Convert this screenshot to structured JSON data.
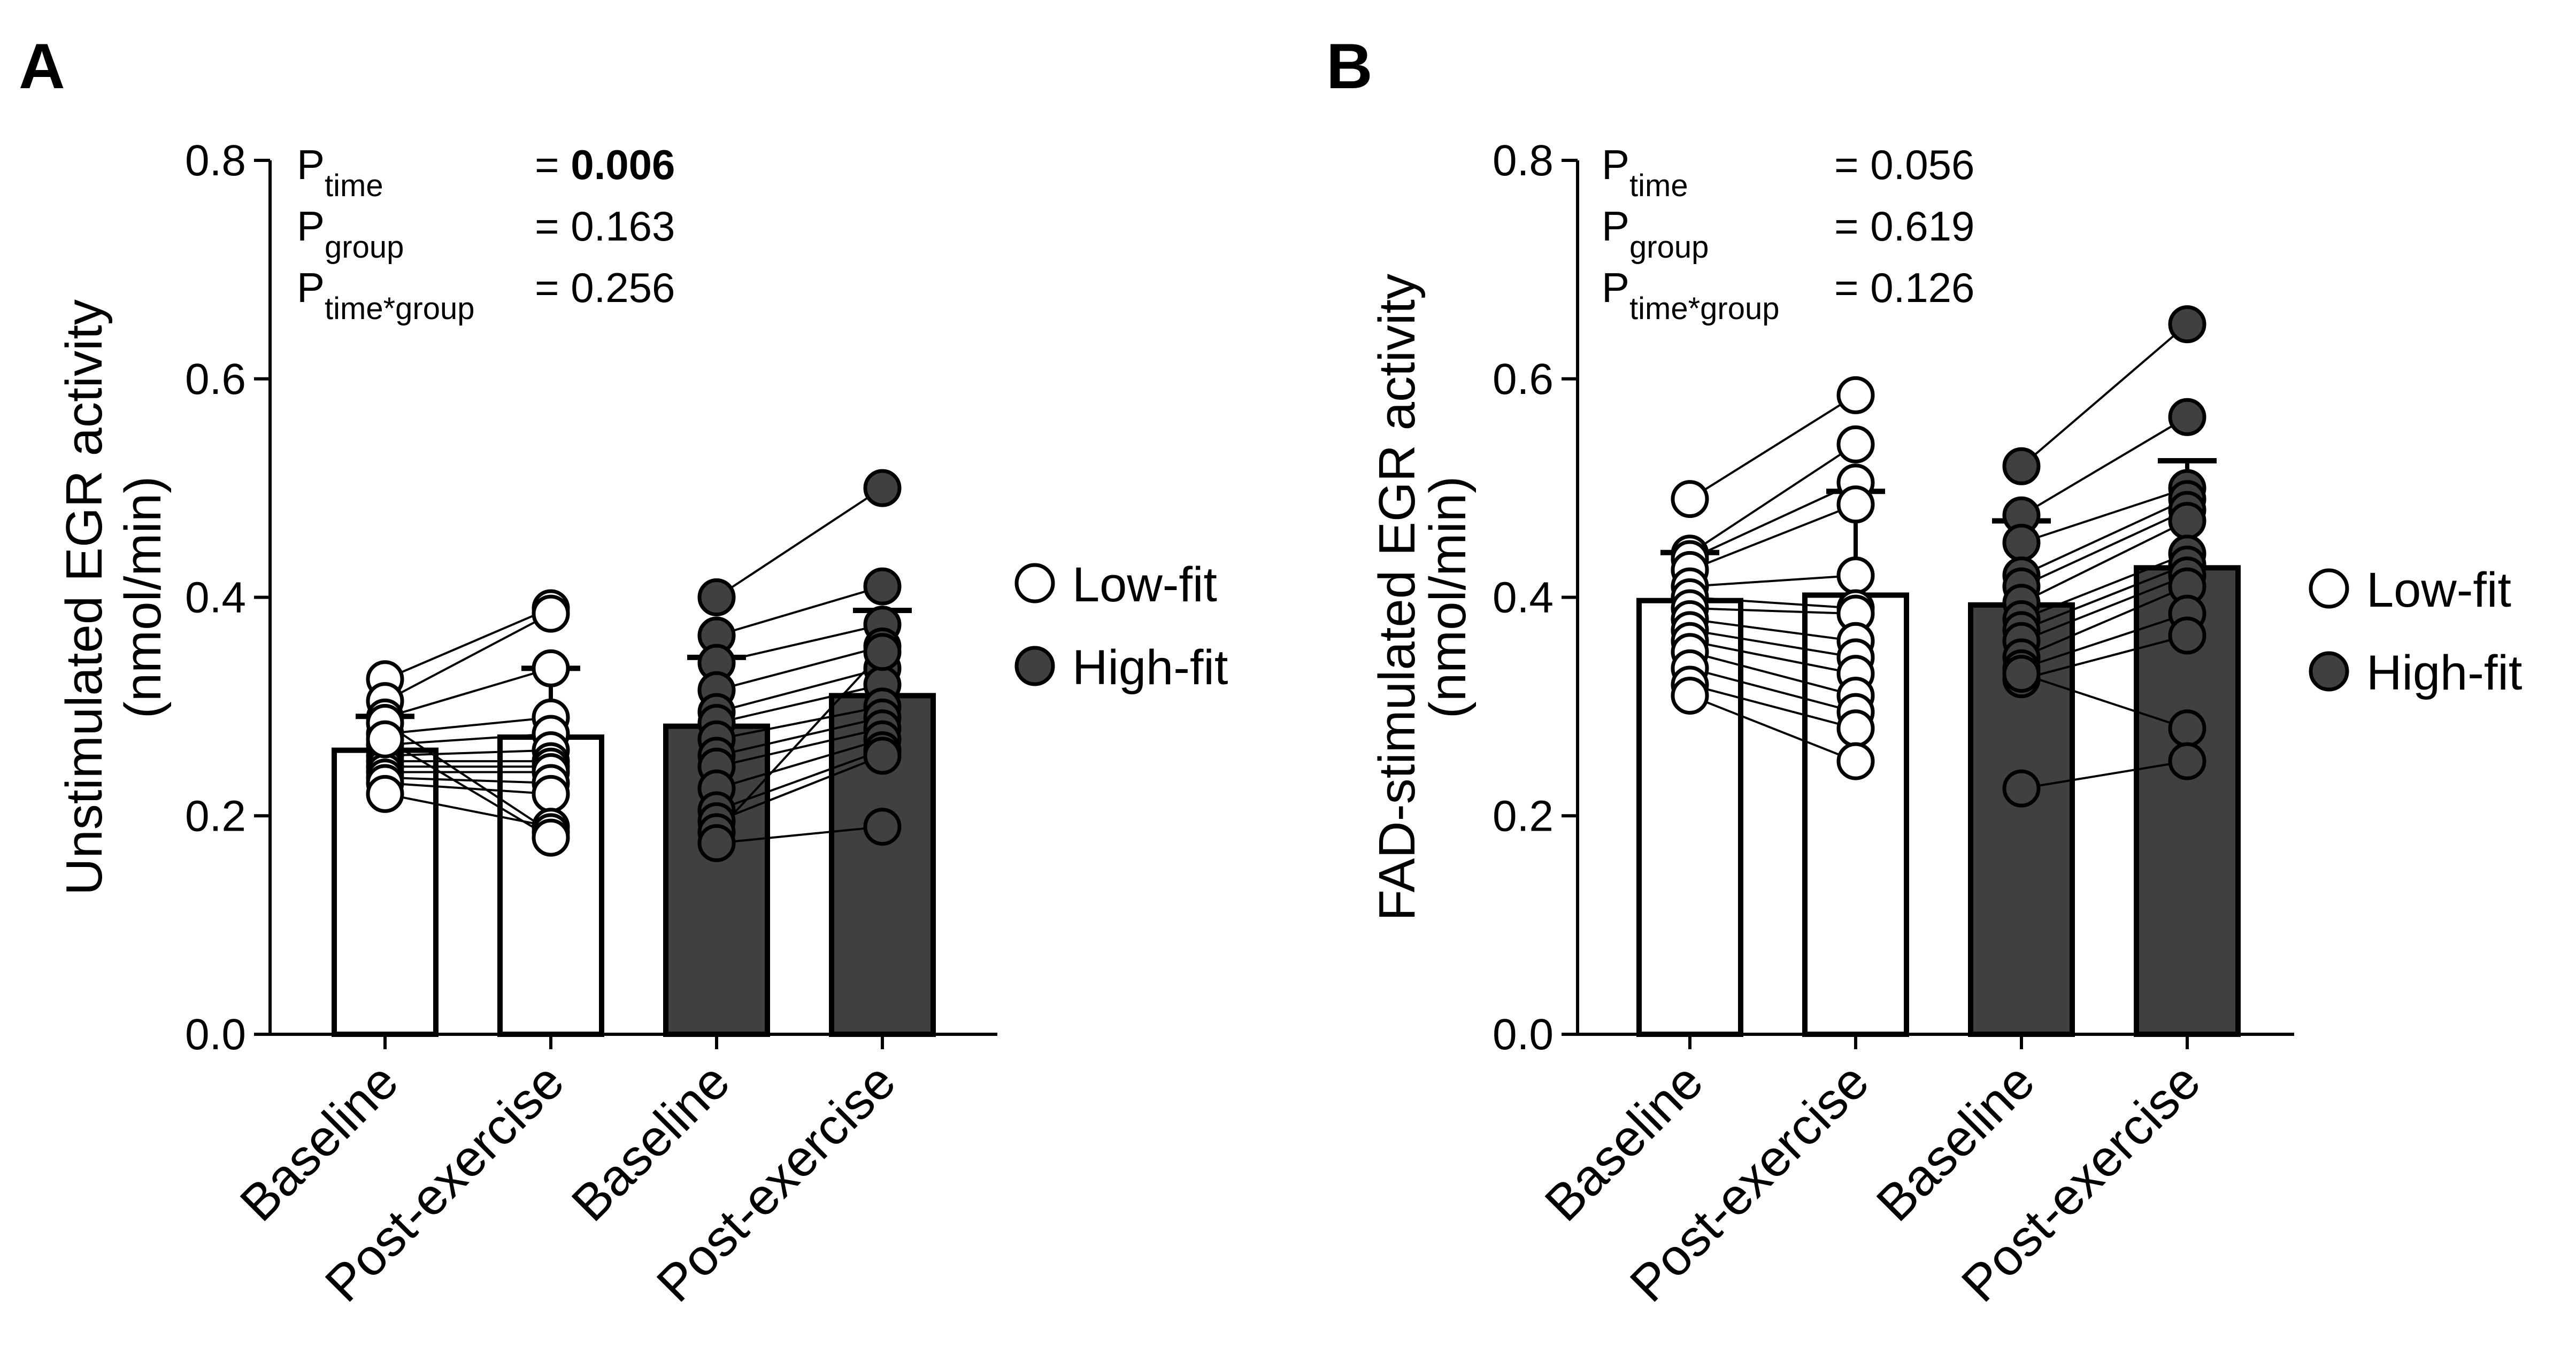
{
  "figure": {
    "legend": [
      {
        "label": "Low-fit",
        "fill": "#ffffff"
      },
      {
        "label": "High-fit",
        "fill": "#404040"
      }
    ]
  },
  "chart_data": [
    {
      "type": "bar",
      "panel_label": "A",
      "ylabel_line1": "Unstimulated EGR activity",
      "ylabel_line2": "(nmol/min)",
      "ylim": [
        0,
        0.8
      ],
      "yticks": [
        "0.0",
        "0.2",
        "0.4",
        "0.6",
        "0.8"
      ],
      "categories": [
        "Baseline",
        "Post-exercise",
        "Baseline",
        "Post-exercise"
      ],
      "groups": [
        "Low-fit",
        "Low-fit",
        "High-fit",
        "High-fit"
      ],
      "values": [
        0.26,
        0.272,
        0.282,
        0.31
      ],
      "error_upper": [
        0.291,
        0.335,
        0.345,
        0.388
      ],
      "stats": [
        {
          "p": "P",
          "sub": "time",
          "eq": "= ",
          "val": "0.006",
          "bold": true
        },
        {
          "p": "P",
          "sub": "group",
          "eq": "= ",
          "val": "0.163",
          "bold": false
        },
        {
          "p": "P",
          "sub": "time*group",
          "eq": "= ",
          "val": "0.256",
          "bold": false
        }
      ],
      "pairs": [
        {
          "group": "Low-fit",
          "baseline": [
            0.325,
            0.305,
            0.29,
            0.275,
            0.265,
            0.255,
            0.25,
            0.245,
            0.24,
            0.235,
            0.23,
            0.22,
            0.285,
            0.27
          ],
          "post": [
            0.39,
            0.385,
            0.335,
            0.29,
            0.275,
            0.26,
            0.25,
            0.245,
            0.24,
            0.23,
            0.22,
            0.19,
            0.185,
            0.18
          ]
        },
        {
          "group": "High-fit",
          "baseline": [
            0.4,
            0.365,
            0.34,
            0.315,
            0.295,
            0.285,
            0.27,
            0.255,
            0.245,
            0.225,
            0.205,
            0.195,
            0.185,
            0.175
          ],
          "post": [
            0.5,
            0.41,
            0.375,
            0.355,
            0.335,
            0.32,
            0.3,
            0.29,
            0.28,
            0.27,
            0.26,
            0.255,
            0.35,
            0.19
          ]
        }
      ]
    },
    {
      "type": "bar",
      "panel_label": "B",
      "ylabel_line1": "FAD-stimulated EGR activity",
      "ylabel_line2": "(nmol/min)",
      "ylim": [
        0,
        0.8
      ],
      "yticks": [
        "0.0",
        "0.2",
        "0.4",
        "0.6",
        "0.8"
      ],
      "categories": [
        "Baseline",
        "Post-exercise",
        "Baseline",
        "Post-exercise"
      ],
      "groups": [
        "Low-fit",
        "Low-fit",
        "High-fit",
        "High-fit"
      ],
      "values": [
        0.397,
        0.402,
        0.393,
        0.427
      ],
      "error_upper": [
        0.441,
        0.497,
        0.47,
        0.525
      ],
      "stats": [
        {
          "p": "P",
          "sub": "time",
          "eq": "= ",
          "val": "0.056",
          "bold": false
        },
        {
          "p": "P",
          "sub": "group",
          "eq": "= ",
          "val": "0.619",
          "bold": false
        },
        {
          "p": "P",
          "sub": "time*group",
          "eq": "= ",
          "val": "0.126",
          "bold": false
        }
      ],
      "pairs": [
        {
          "group": "Low-fit",
          "baseline": [
            0.49,
            0.44,
            0.435,
            0.425,
            0.41,
            0.4,
            0.39,
            0.38,
            0.37,
            0.36,
            0.35,
            0.335,
            0.32,
            0.31
          ],
          "post": [
            0.585,
            0.54,
            0.505,
            0.485,
            0.42,
            0.39,
            0.385,
            0.36,
            0.345,
            0.33,
            0.31,
            0.295,
            0.28,
            0.25
          ]
        },
        {
          "group": "High-fit",
          "baseline": [
            0.52,
            0.475,
            0.45,
            0.42,
            0.41,
            0.395,
            0.38,
            0.37,
            0.36,
            0.345,
            0.335,
            0.325,
            0.33,
            0.225
          ],
          "post": [
            0.65,
            0.565,
            0.5,
            0.49,
            0.48,
            0.47,
            0.44,
            0.43,
            0.42,
            0.41,
            0.385,
            0.365,
            0.28,
            0.25
          ]
        }
      ]
    }
  ]
}
